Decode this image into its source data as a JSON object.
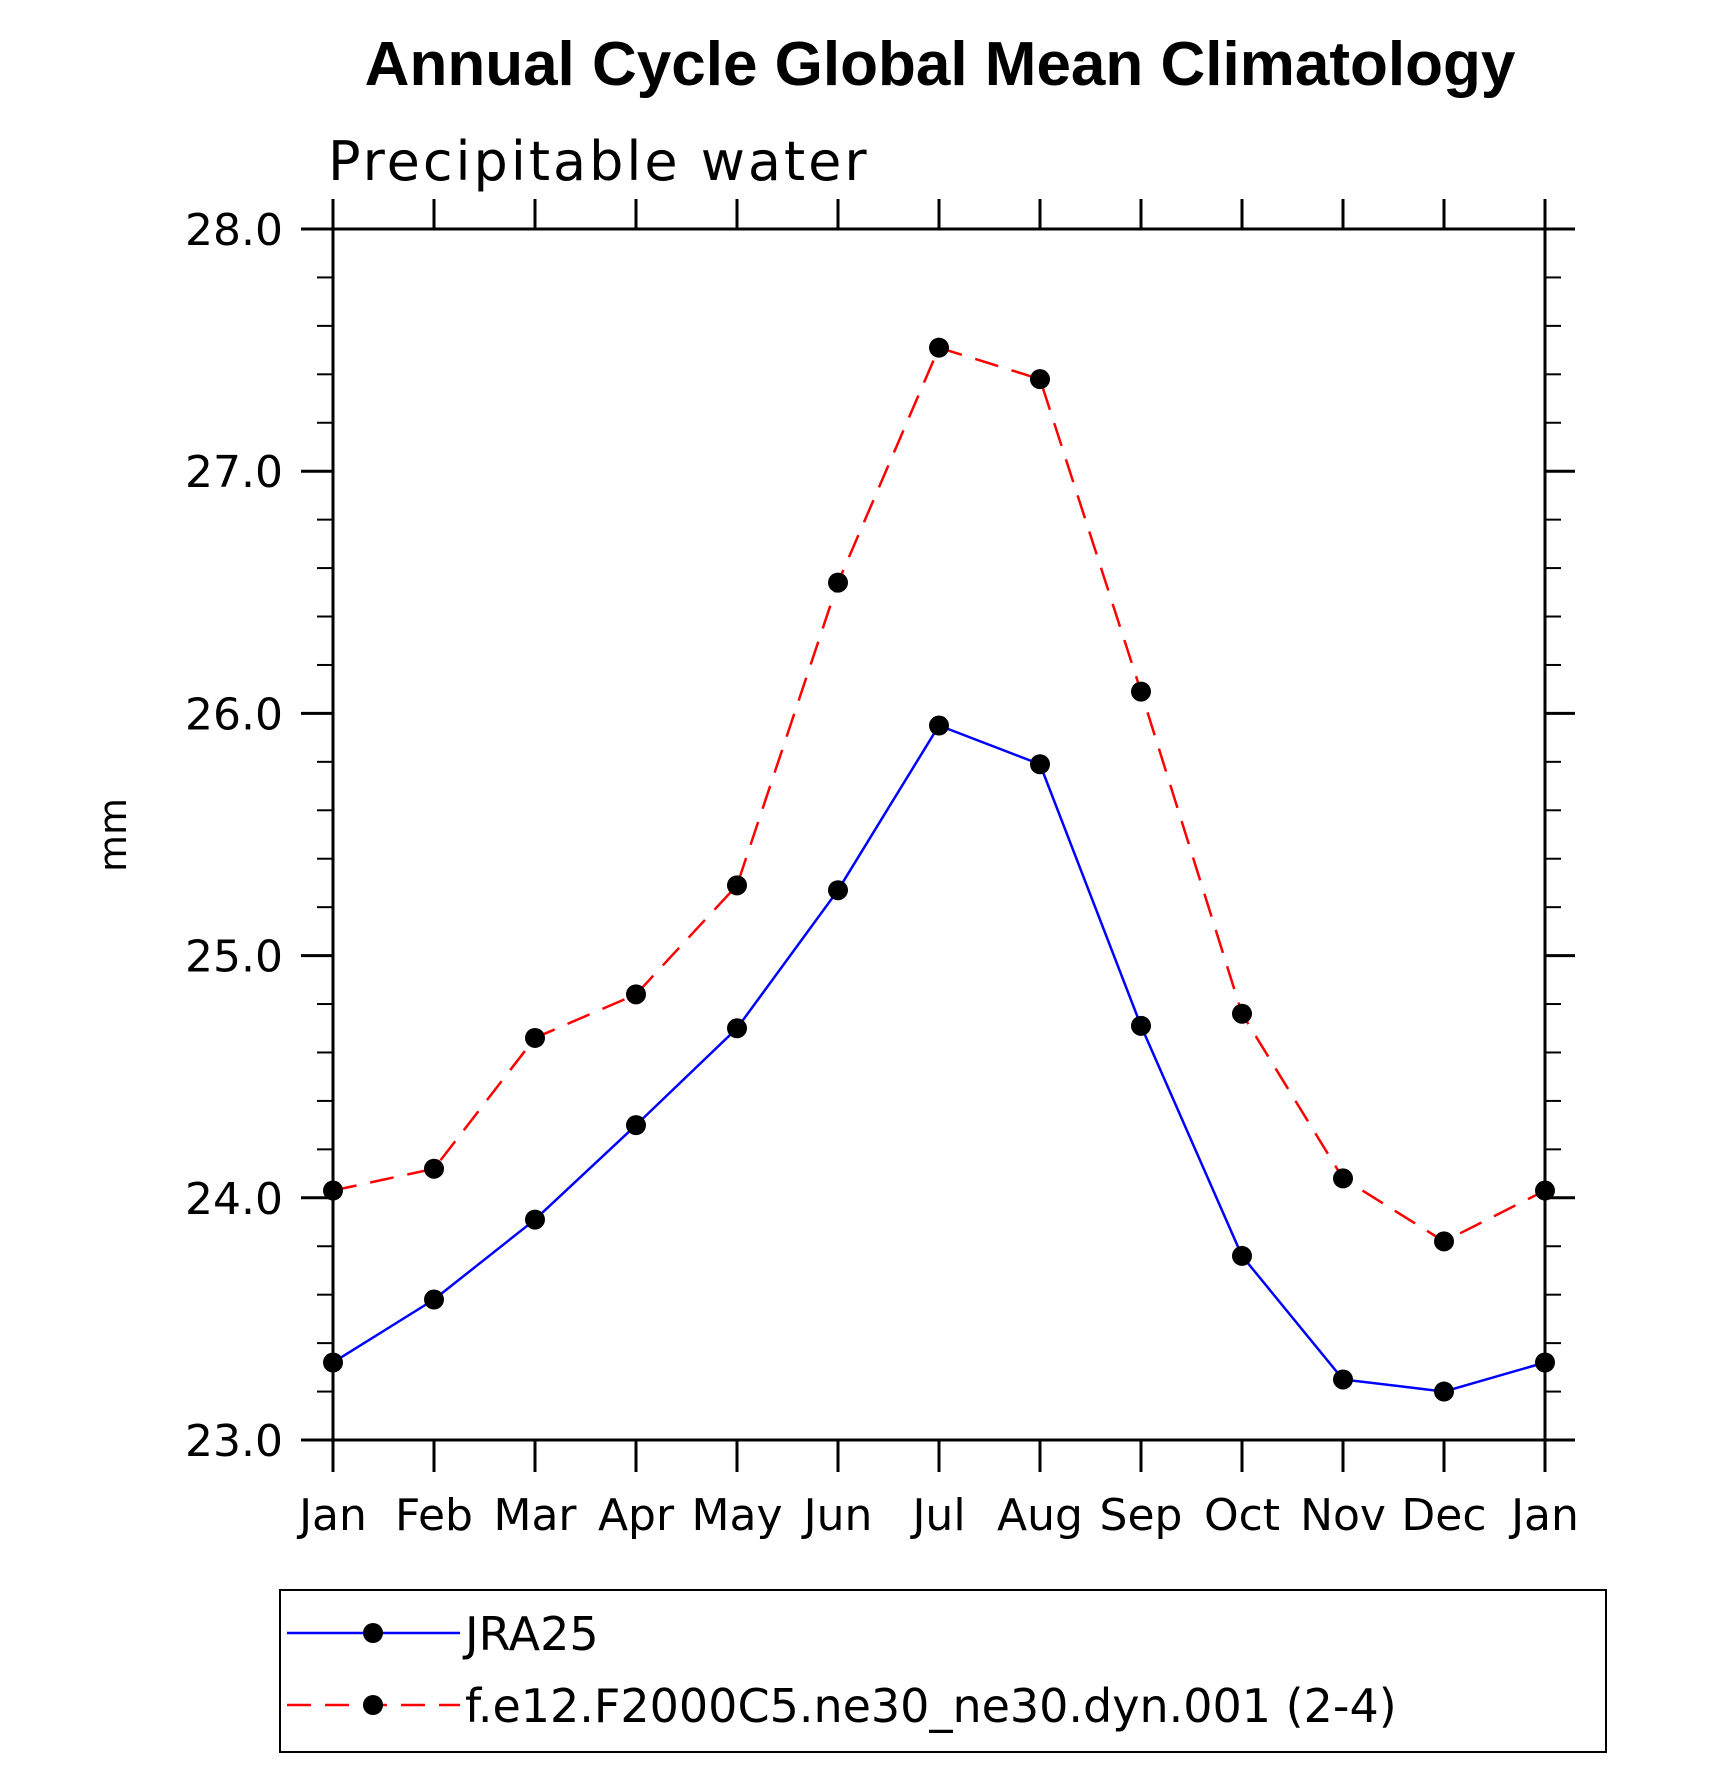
{
  "chart_data": {
    "type": "line",
    "title": "Annual Cycle Global Mean Climatology",
    "subtitle": "Precipitable water",
    "xlabel": "",
    "ylabel": "mm",
    "categories": [
      "Jan",
      "Feb",
      "Mar",
      "Apr",
      "May",
      "Jun",
      "Jul",
      "Aug",
      "Sep",
      "Oct",
      "Nov",
      "Dec",
      "Jan"
    ],
    "ylim": [
      23.0,
      28.0
    ],
    "yticks": [
      "23.0",
      "24.0",
      "25.0",
      "26.0",
      "27.0",
      "28.0"
    ],
    "grid": false,
    "legend_position": "bottom",
    "series": [
      {
        "name": "JRA25",
        "color": "#0000ff",
        "style": "solid",
        "marker": "circle",
        "values": [
          23.32,
          23.58,
          23.91,
          24.3,
          24.7,
          25.27,
          25.95,
          25.79,
          24.71,
          23.76,
          23.25,
          23.2,
          23.32
        ]
      },
      {
        "name": "f.e12.F2000C5.ne30_ne30.dyn.001 (2-4)",
        "color": "#ff0000",
        "style": "dashed",
        "marker": "circle",
        "values": [
          24.03,
          24.12,
          24.66,
          24.84,
          25.29,
          26.54,
          27.51,
          27.38,
          26.09,
          24.76,
          24.08,
          23.82,
          24.03
        ]
      }
    ]
  }
}
